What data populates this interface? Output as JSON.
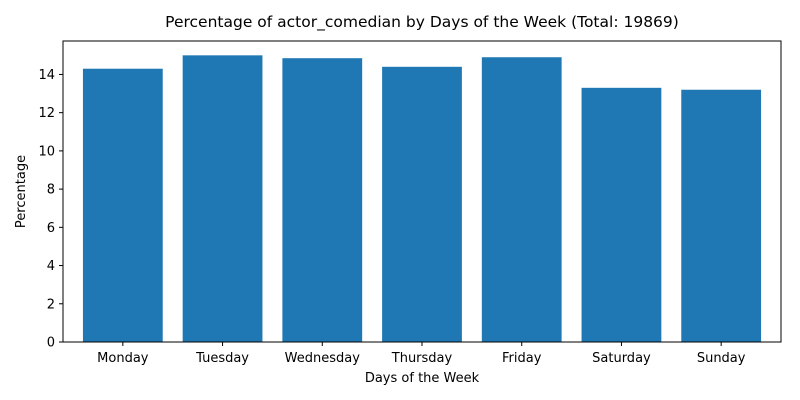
{
  "chart_data": {
    "type": "bar",
    "title": "Percentage of actor_comedian by Days of the Week (Total: 19869)",
    "xlabel": "Days of the Week",
    "ylabel": "Percentage",
    "categories": [
      "Monday",
      "Tuesday",
      "Wednesday",
      "Thursday",
      "Friday",
      "Saturday",
      "Sunday"
    ],
    "values": [
      14.3,
      15.0,
      14.85,
      14.4,
      14.9,
      13.3,
      13.2
    ],
    "ylim": [
      0,
      15.75
    ],
    "yticks": [
      0,
      2,
      4,
      6,
      8,
      10,
      12,
      14
    ],
    "bar_color": "#1f77b4",
    "grid": false,
    "legend": "none"
  }
}
